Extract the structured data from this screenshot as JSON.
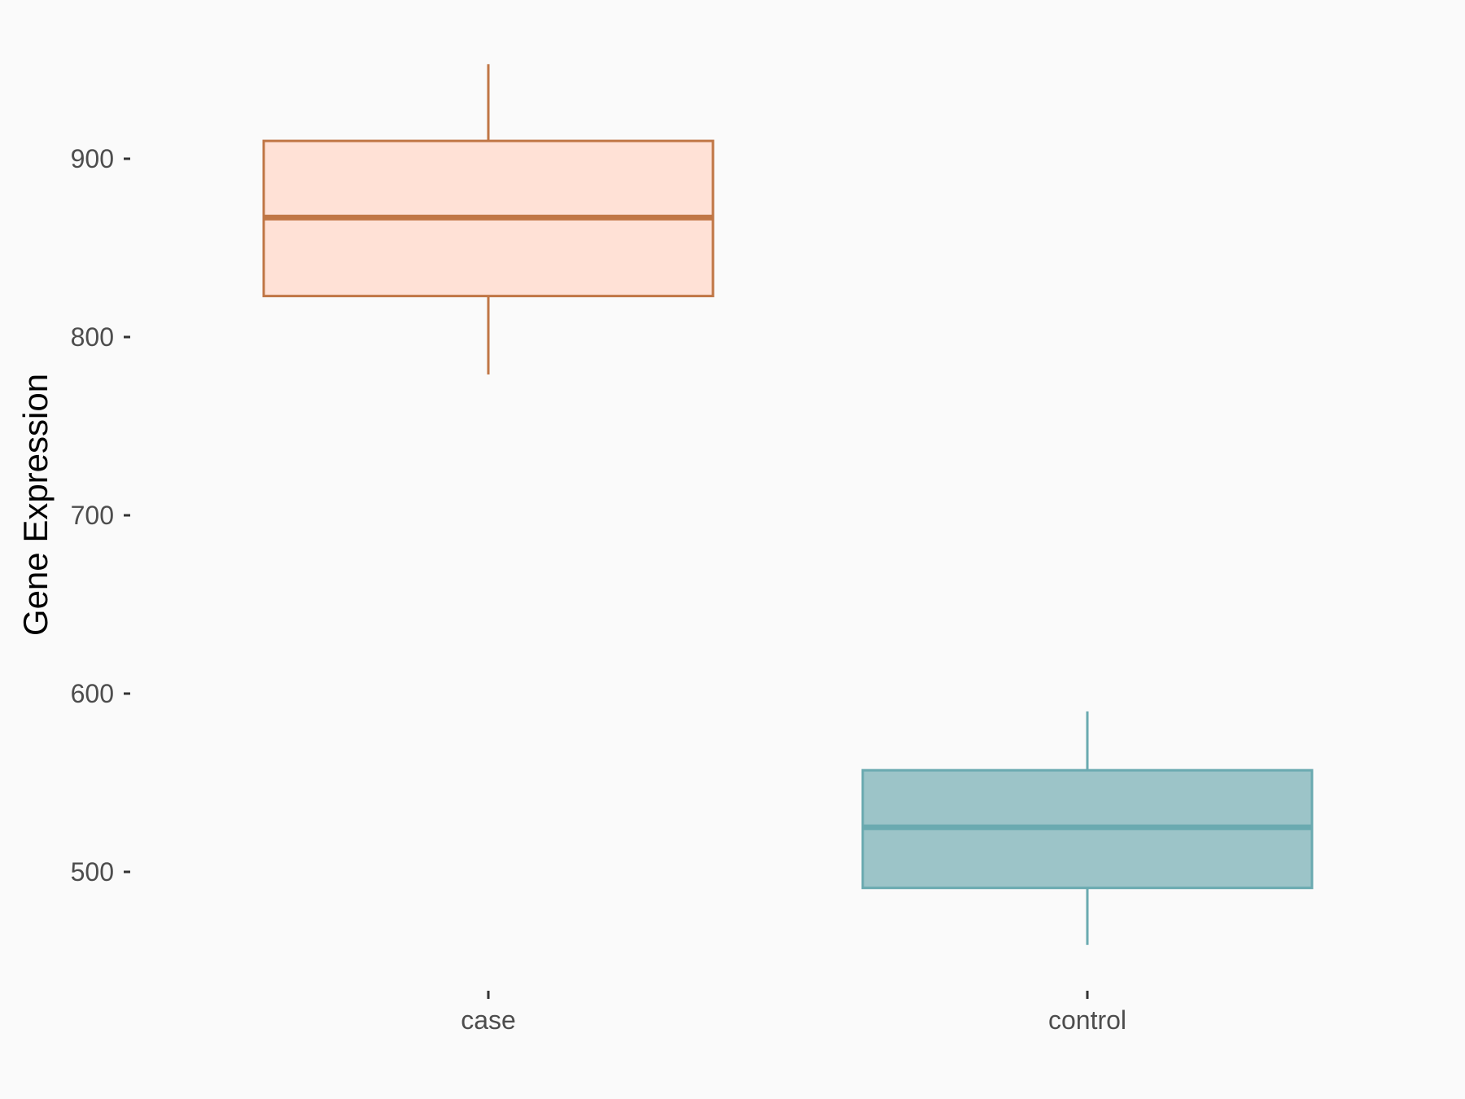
{
  "chart_data": {
    "type": "boxplot",
    "title": "",
    "xlabel": "",
    "ylabel": "Gene Expression",
    "ylim": [
      443,
      967
    ],
    "yticks": [
      500,
      600,
      700,
      800,
      900
    ],
    "ytick_labels": [
      "500",
      "600",
      "700",
      "800",
      "900"
    ],
    "grid": false,
    "legend": "none",
    "categories": [
      "case",
      "control"
    ],
    "boxes": [
      {
        "category": "case",
        "whisker_low": 779,
        "q1": 823,
        "median": 867,
        "q3": 910,
        "whisker_high": 953,
        "fill": "#FFE1D6",
        "stroke": "#C07645"
      },
      {
        "category": "control",
        "whisker_low": 459,
        "q1": 491,
        "median": 525,
        "q3": 557,
        "whisker_high": 590,
        "fill": "#9CC4C8",
        "stroke": "#6AAAB0"
      }
    ]
  }
}
